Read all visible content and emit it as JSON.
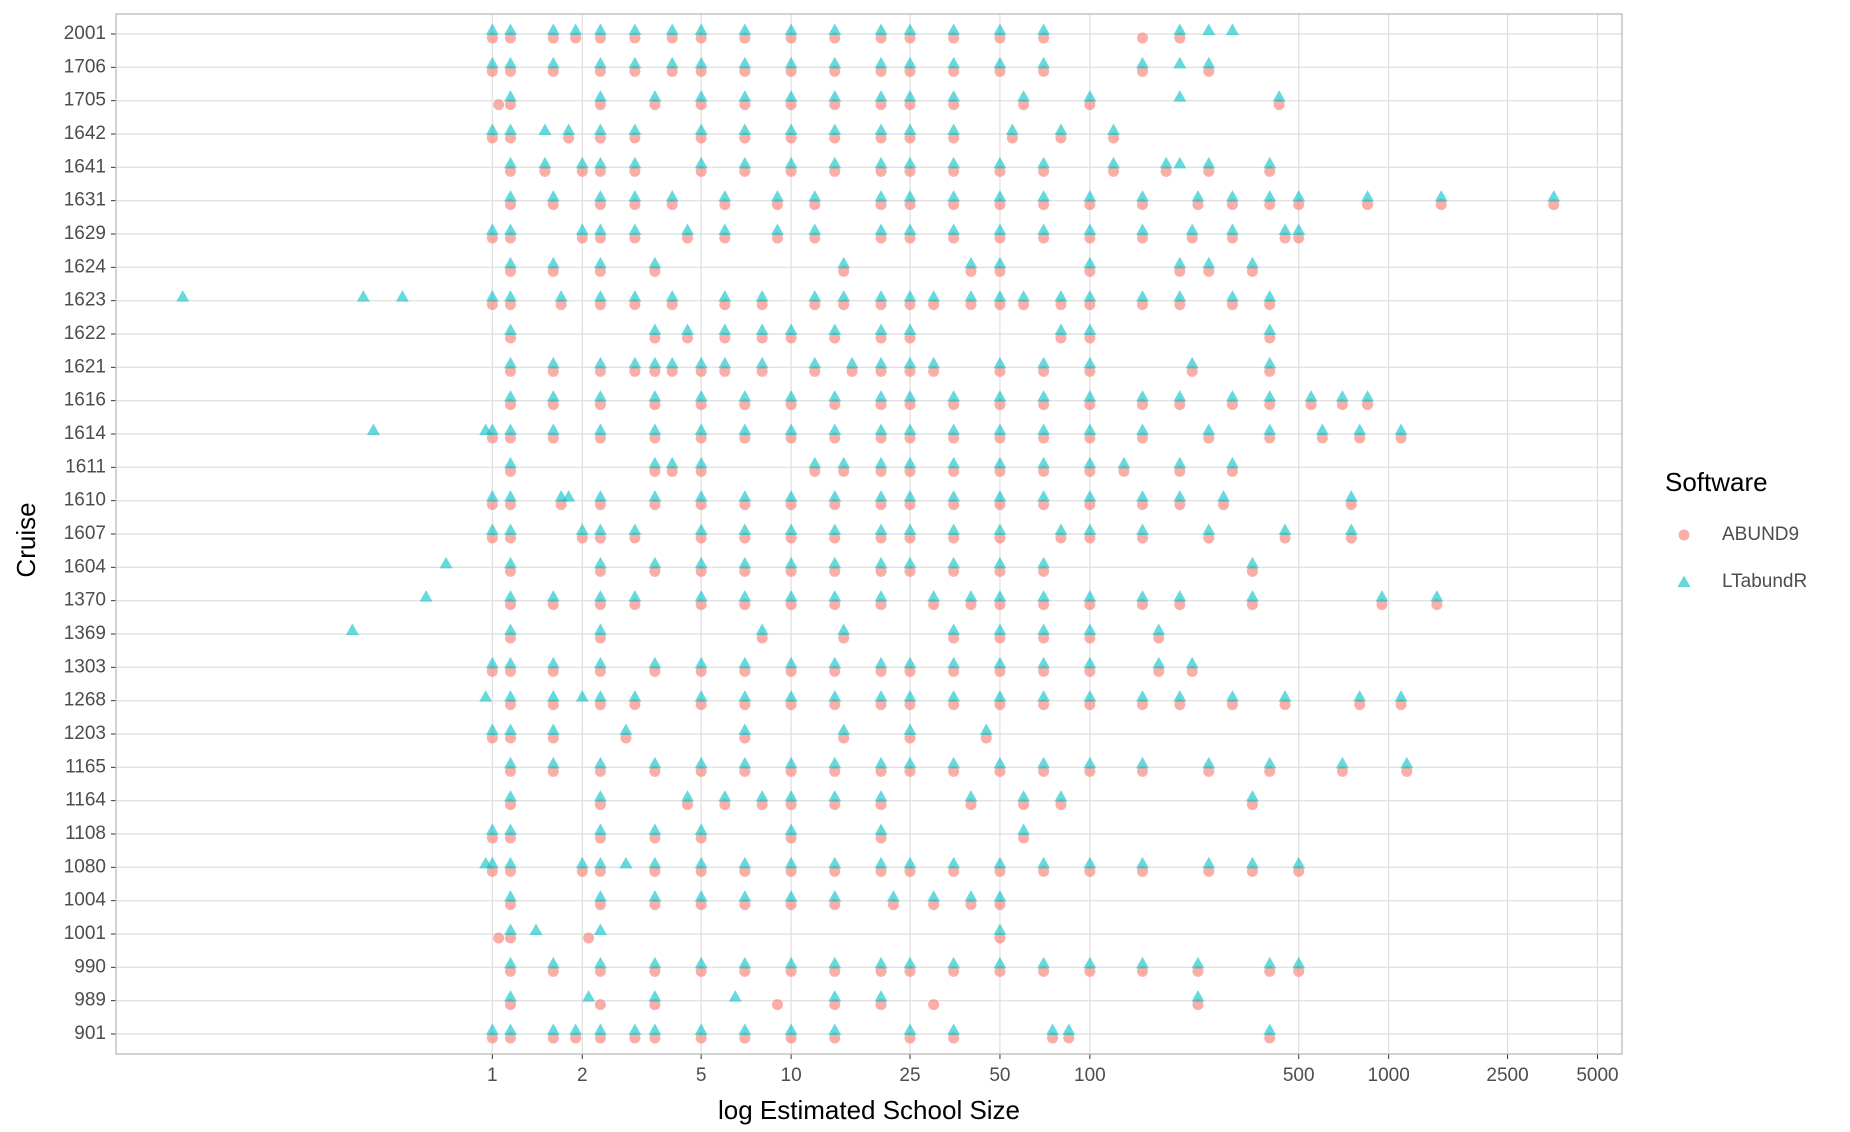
{
  "chart_data": {
    "type": "scatter",
    "x_label": "log Estimated School Size",
    "y_label": "Cruise",
    "legend_title": "Software",
    "legend": "right",
    "grid": true,
    "log_x": true,
    "xlim": [
      0.055,
      6040
    ],
    "xticks": [
      1,
      2,
      5,
      10,
      25,
      50,
      100,
      500,
      1000,
      2500,
      5000
    ],
    "categories": [
      "901",
      "989",
      "990",
      "1001",
      "1004",
      "1080",
      "1108",
      "1164",
      "1165",
      "1203",
      "1268",
      "1303",
      "1369",
      "1370",
      "1604",
      "1607",
      "1610",
      "1611",
      "1614",
      "1616",
      "1621",
      "1622",
      "1623",
      "1624",
      "1629",
      "1631",
      "1641",
      "1642",
      "1705",
      "1706",
      "2001"
    ],
    "series": [
      {
        "name": "ABUND9",
        "color": "#F8766D",
        "shape": "circle",
        "values": [
          [
            1,
            1.15,
            1.6,
            1.9,
            2.3,
            3,
            3.5,
            5,
            7,
            10,
            14,
            25,
            35,
            75,
            85,
            400
          ],
          [
            1.15,
            2.3,
            3.5,
            9,
            14,
            20,
            30,
            230
          ],
          [
            1.15,
            1.6,
            2.3,
            3.5,
            5,
            7,
            10,
            14,
            20,
            25,
            35,
            50,
            70,
            100,
            150,
            230,
            400,
            500
          ],
          [
            1.05,
            1.15,
            2.1,
            50
          ],
          [
            1.15,
            2.3,
            3.5,
            5,
            7,
            10,
            14,
            22,
            30,
            40,
            50
          ],
          [
            1,
            1.15,
            2,
            2.3,
            3.5,
            5,
            7,
            10,
            14,
            20,
            25,
            35,
            50,
            70,
            100,
            150,
            250,
            350,
            500
          ],
          [
            1,
            1.15,
            2.3,
            3.5,
            5,
            10,
            20,
            60
          ],
          [
            1.15,
            2.3,
            4.5,
            6,
            8,
            10,
            14,
            20,
            40,
            60,
            80,
            350
          ],
          [
            1.15,
            1.6,
            2.3,
            3.5,
            5,
            7,
            10,
            14,
            20,
            25,
            35,
            50,
            70,
            100,
            150,
            250,
            400,
            700,
            1150
          ],
          [
            1,
            1.15,
            1.6,
            2.8,
            7,
            15,
            25,
            45
          ],
          [
            1.15,
            1.6,
            2.3,
            3,
            5,
            7,
            10,
            14,
            20,
            25,
            35,
            50,
            70,
            100,
            150,
            200,
            300,
            450,
            800,
            1100
          ],
          [
            1,
            1.15,
            1.6,
            2.3,
            3.5,
            5,
            7,
            10,
            14,
            20,
            25,
            35,
            50,
            70,
            100,
            170,
            220
          ],
          [
            1.15,
            2.3,
            8,
            15,
            35,
            50,
            70,
            100,
            170
          ],
          [
            1.15,
            1.6,
            2.3,
            3,
            5,
            7,
            10,
            14,
            20,
            30,
            40,
            50,
            70,
            100,
            150,
            200,
            350,
            950,
            1450
          ],
          [
            1.15,
            2.3,
            3.5,
            5,
            7,
            10,
            14,
            20,
            25,
            35,
            50,
            70,
            350
          ],
          [
            1,
            1.15,
            2,
            2.3,
            3,
            5,
            7,
            10,
            14,
            20,
            25,
            35,
            50,
            80,
            100,
            150,
            250,
            450,
            750
          ],
          [
            1,
            1.15,
            1.7,
            2.3,
            3.5,
            5,
            7,
            10,
            14,
            20,
            25,
            35,
            50,
            70,
            100,
            150,
            200,
            280,
            750
          ],
          [
            1.15,
            3.5,
            4,
            5,
            12,
            15,
            20,
            25,
            35,
            50,
            70,
            100,
            130,
            200,
            300
          ],
          [
            1,
            1.15,
            1.6,
            2.3,
            3.5,
            5,
            7,
            10,
            14,
            20,
            25,
            35,
            50,
            70,
            100,
            150,
            250,
            400,
            600,
            800,
            1100
          ],
          [
            1.15,
            1.6,
            2.3,
            3.5,
            5,
            7,
            10,
            14,
            20,
            25,
            35,
            50,
            70,
            100,
            150,
            200,
            300,
            400,
            550,
            700,
            850
          ],
          [
            1.15,
            1.6,
            2.3,
            3,
            3.5,
            4,
            5,
            6,
            8,
            12,
            16,
            20,
            25,
            30,
            50,
            70,
            100,
            220,
            400
          ],
          [
            1.15,
            3.5,
            4.5,
            6,
            8,
            10,
            14,
            20,
            25,
            80,
            100,
            400
          ],
          [
            1,
            1.15,
            1.7,
            2.3,
            3,
            4,
            6,
            8,
            12,
            15,
            20,
            25,
            30,
            40,
            50,
            60,
            80,
            100,
            150,
            200,
            300,
            400
          ],
          [
            1.15,
            1.6,
            2.3,
            3.5,
            15,
            40,
            50,
            100,
            200,
            250,
            350
          ],
          [
            1,
            1.15,
            2,
            2.3,
            3,
            4.5,
            6,
            9,
            12,
            20,
            25,
            35,
            50,
            70,
            100,
            150,
            220,
            300,
            450,
            500
          ],
          [
            1.15,
            1.6,
            2.3,
            3,
            4,
            6,
            9,
            12,
            20,
            25,
            35,
            50,
            70,
            100,
            150,
            230,
            300,
            400,
            500,
            850,
            1500,
            3570
          ],
          [
            1.15,
            1.5,
            2,
            2.3,
            3,
            5,
            7,
            10,
            14,
            20,
            25,
            35,
            50,
            70,
            120,
            180,
            250,
            400
          ],
          [
            1,
            1.15,
            1.8,
            2.3,
            3,
            5,
            7,
            10,
            14,
            20,
            25,
            35,
            55,
            80,
            120
          ],
          [
            1.05,
            1.15,
            2.3,
            3.5,
            5,
            7,
            10,
            14,
            20,
            25,
            35,
            60,
            100,
            430
          ],
          [
            1,
            1.15,
            1.6,
            2.3,
            3,
            4,
            5,
            7,
            10,
            14,
            20,
            25,
            35,
            50,
            70,
            150,
            250
          ],
          [
            1,
            1.15,
            1.6,
            1.9,
            2.3,
            3,
            4,
            5,
            7,
            10,
            14,
            20,
            25,
            35,
            50,
            70,
            150,
            200
          ]
        ]
      },
      {
        "name": "LTabundR",
        "color": "#00BFC4",
        "shape": "triangle",
        "values": [
          [
            1,
            1.15,
            1.6,
            1.9,
            2.3,
            3,
            3.5,
            5,
            7,
            10,
            14,
            25,
            35,
            75,
            85,
            400
          ],
          [
            1.15,
            2.1,
            3.5,
            6.5,
            14,
            20,
            230
          ],
          [
            1.15,
            1.6,
            2.3,
            3.5,
            5,
            7,
            10,
            14,
            20,
            25,
            35,
            50,
            70,
            100,
            150,
            230,
            400,
            500
          ],
          [
            1.15,
            1.4,
            2.3,
            50
          ],
          [
            1.15,
            2.3,
            3.5,
            5,
            7,
            10,
            14,
            22,
            30,
            40,
            50
          ],
          [
            0.95,
            1,
            1.15,
            2,
            2.3,
            2.8,
            3.5,
            5,
            7,
            10,
            14,
            20,
            25,
            35,
            50,
            70,
            100,
            150,
            250,
            350,
            500
          ],
          [
            1,
            1.15,
            2.3,
            3.5,
            5,
            10,
            20,
            60
          ],
          [
            1.15,
            2.3,
            4.5,
            6,
            8,
            10,
            14,
            20,
            40,
            60,
            80,
            350
          ],
          [
            1.15,
            1.6,
            2.3,
            3.5,
            5,
            7,
            10,
            14,
            20,
            25,
            35,
            50,
            70,
            100,
            150,
            250,
            400,
            700,
            1150
          ],
          [
            1,
            1.15,
            1.6,
            2.8,
            7,
            15,
            25,
            45
          ],
          [
            0.95,
            1.15,
            1.6,
            2,
            2.3,
            3,
            5,
            7,
            10,
            14,
            20,
            25,
            35,
            50,
            70,
            100,
            150,
            200,
            300,
            450,
            800,
            1100
          ],
          [
            1,
            1.15,
            1.6,
            2.3,
            3.5,
            5,
            7,
            10,
            14,
            20,
            25,
            35,
            50,
            70,
            100,
            170,
            220
          ],
          [
            0.34,
            1.15,
            2.3,
            8,
            15,
            35,
            50,
            70,
            100,
            170
          ],
          [
            0.6,
            1.15,
            1.6,
            2.3,
            3,
            5,
            7,
            10,
            14,
            20,
            30,
            40,
            50,
            70,
            100,
            150,
            200,
            350,
            950,
            1450
          ],
          [
            0.7,
            1.15,
            2.3,
            3.5,
            5,
            7,
            10,
            14,
            20,
            25,
            35,
            50,
            70,
            350
          ],
          [
            1,
            1.15,
            2,
            2.3,
            3,
            5,
            7,
            10,
            14,
            20,
            25,
            35,
            50,
            80,
            100,
            150,
            250,
            450,
            750
          ],
          [
            1,
            1.15,
            1.7,
            1.8,
            2.3,
            3.5,
            5,
            7,
            10,
            14,
            20,
            25,
            35,
            50,
            70,
            100,
            150,
            200,
            280,
            750
          ],
          [
            1.15,
            3.5,
            4,
            5,
            12,
            15,
            20,
            25,
            35,
            50,
            70,
            100,
            130,
            200,
            300
          ],
          [
            0.4,
            0.95,
            1,
            1.15,
            1.6,
            2.3,
            3.5,
            5,
            7,
            10,
            14,
            20,
            25,
            35,
            50,
            70,
            100,
            150,
            250,
            400,
            600,
            800,
            1100
          ],
          [
            1.15,
            1.6,
            2.3,
            3.5,
            5,
            7,
            10,
            14,
            20,
            25,
            35,
            50,
            70,
            100,
            150,
            200,
            300,
            400,
            550,
            700,
            850
          ],
          [
            1.15,
            1.6,
            2.3,
            3,
            3.5,
            4,
            5,
            6,
            8,
            12,
            16,
            20,
            25,
            30,
            50,
            70,
            100,
            220,
            400
          ],
          [
            1.15,
            3.5,
            4.5,
            6,
            8,
            10,
            14,
            20,
            25,
            80,
            100,
            400
          ],
          [
            0.092,
            0.37,
            0.5,
            1,
            1.15,
            1.7,
            2.3,
            3,
            4,
            6,
            8,
            12,
            15,
            20,
            25,
            30,
            40,
            50,
            60,
            80,
            100,
            150,
            200,
            300,
            400
          ],
          [
            1.15,
            1.6,
            2.3,
            3.5,
            15,
            40,
            50,
            100,
            200,
            250,
            350
          ],
          [
            1,
            1.15,
            2,
            2.3,
            3,
            4.5,
            6,
            9,
            12,
            20,
            25,
            35,
            50,
            70,
            100,
            150,
            220,
            300,
            450,
            500
          ],
          [
            1.15,
            1.6,
            2.3,
            3,
            4,
            6,
            9,
            12,
            20,
            25,
            35,
            50,
            70,
            100,
            150,
            230,
            300,
            400,
            500,
            850,
            1500,
            3570
          ],
          [
            1.15,
            1.5,
            2,
            2.3,
            3,
            5,
            7,
            10,
            14,
            20,
            25,
            35,
            50,
            70,
            120,
            180,
            200,
            250,
            400
          ],
          [
            1,
            1.15,
            1.5,
            1.8,
            2.3,
            3,
            5,
            7,
            10,
            14,
            20,
            25,
            35,
            55,
            80,
            120
          ],
          [
            1.15,
            2.3,
            3.5,
            5,
            7,
            10,
            14,
            20,
            25,
            35,
            60,
            100,
            200,
            430
          ],
          [
            1,
            1.15,
            1.6,
            2.3,
            3,
            4,
            5,
            7,
            10,
            14,
            20,
            25,
            35,
            50,
            70,
            150,
            200,
            250
          ],
          [
            1,
            1.15,
            1.6,
            1.9,
            2.3,
            3,
            4,
            5,
            7,
            10,
            14,
            20,
            25,
            35,
            50,
            70,
            200,
            250,
            300
          ]
        ]
      }
    ]
  }
}
